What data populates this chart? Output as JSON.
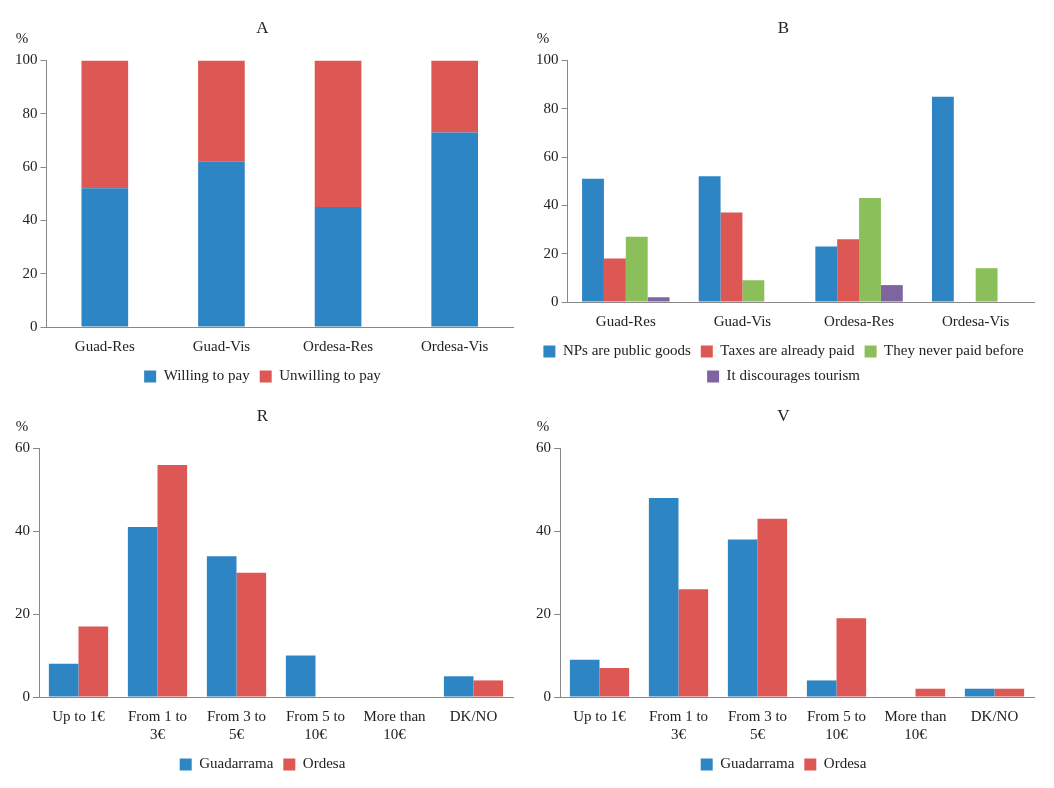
{
  "chart_data": [
    {
      "type": "bar",
      "title": "A",
      "ylabel": "%",
      "stacked": true,
      "categories": [
        "Guad-Res",
        "Guad-Vis",
        "Ordesa-Res",
        "Ordesa-Vis"
      ],
      "series": [
        {
          "name": "Willing to pay",
          "color": "#2e85c4",
          "values": [
            52,
            62,
            45,
            73
          ]
        },
        {
          "name": "Unwilling to pay",
          "color": "#dd5755",
          "values": [
            48,
            38,
            55,
            27
          ]
        }
      ],
      "ylim": [
        0,
        100
      ],
      "yticks": [
        0,
        20,
        40,
        60,
        80,
        100
      ],
      "grid": false,
      "legend": "bottom"
    },
    {
      "type": "bar",
      "title": "B",
      "ylabel": "%",
      "categories": [
        "Guad-Res",
        "Guad-Vis",
        "Ordesa-Res",
        "Ordesa-Vis"
      ],
      "series": [
        {
          "name": "NPs are public goods",
          "color": "#2e85c4",
          "values": [
            51,
            52,
            23,
            85
          ]
        },
        {
          "name": "Taxes are already paid",
          "color": "#dd5755",
          "values": [
            18,
            37,
            26,
            0
          ]
        },
        {
          "name": "They never paid before",
          "color": "#8bbf5a",
          "values": [
            27,
            9,
            43,
            14
          ]
        },
        {
          "name": "It discourages tourism",
          "color": "#8064a2",
          "values": [
            2,
            0,
            7,
            0
          ]
        }
      ],
      "ylim": [
        0,
        100
      ],
      "yticks": [
        0,
        20,
        40,
        60,
        80,
        100
      ],
      "grid": false,
      "legend": "bottom"
    },
    {
      "type": "bar",
      "title": "R",
      "ylabel": "%",
      "categories": [
        "Up to 1€",
        "From 1 to 3€",
        "From 3 to 5€",
        "From 5 to 10€",
        "More than 10€",
        "DK/NO"
      ],
      "series": [
        {
          "name": "Guadarrama",
          "color": "#2e85c4",
          "values": [
            8,
            41,
            34,
            10,
            0,
            5
          ]
        },
        {
          "name": "Ordesa",
          "color": "#dd5755",
          "values": [
            17,
            56,
            30,
            0,
            0,
            4
          ]
        }
      ],
      "ylim": [
        0,
        60
      ],
      "yticks": [
        0,
        20,
        40,
        60
      ],
      "grid": false,
      "legend": "bottom"
    },
    {
      "type": "bar",
      "title": "V",
      "ylabel": "%",
      "categories": [
        "Up to 1€",
        "From 1 to 3€",
        "From 3 to 5€",
        "From 5 to 10€",
        "More than 10€",
        "DK/NO"
      ],
      "series": [
        {
          "name": "Guadarrama",
          "color": "#2e85c4",
          "values": [
            9,
            48,
            38,
            4,
            0,
            2
          ]
        },
        {
          "name": "Ordesa",
          "color": "#dd5755",
          "values": [
            7,
            26,
            43,
            19,
            2,
            2
          ]
        }
      ],
      "ylim": [
        0,
        60
      ],
      "yticks": [
        0,
        20,
        40,
        60
      ],
      "grid": false,
      "legend": "bottom"
    }
  ]
}
